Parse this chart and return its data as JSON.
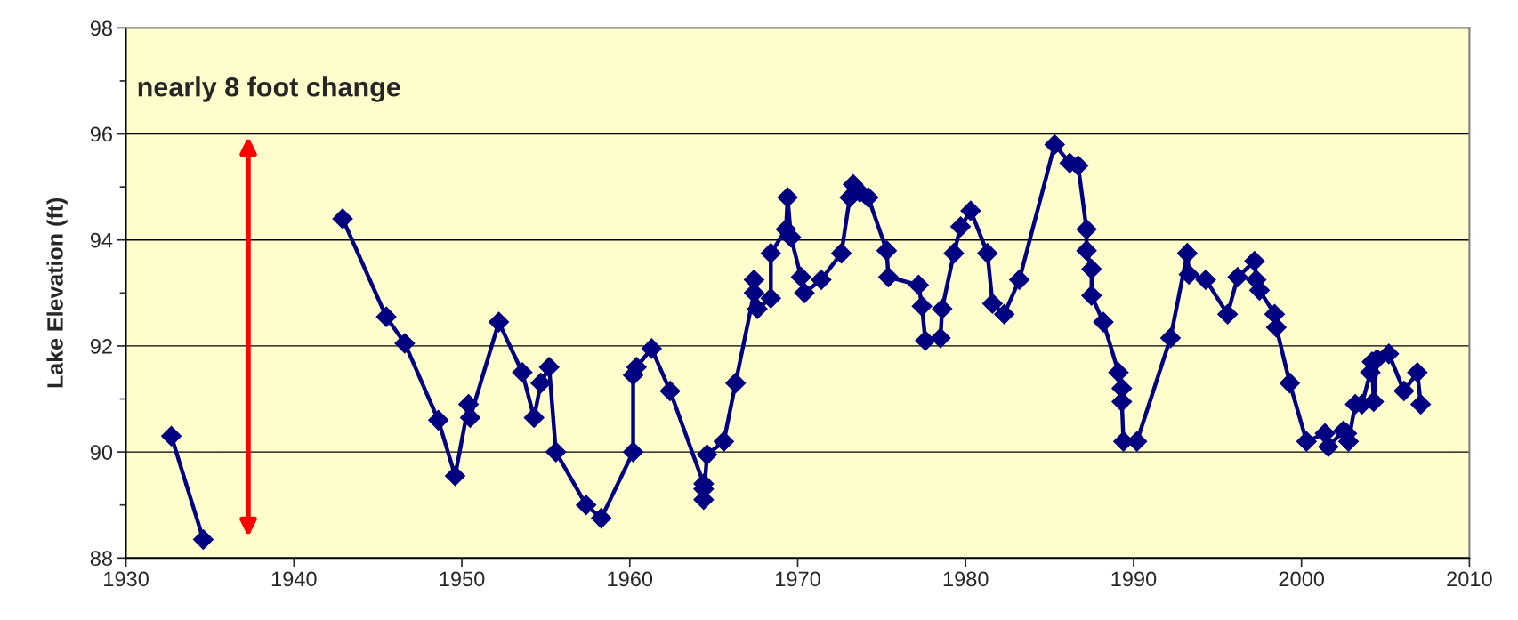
{
  "chart_data": {
    "type": "line",
    "ylabel": "Lake Elevation (ft)",
    "annotations": [
      "nearly 8 foot change"
    ],
    "x": [
      1932.7,
      1934.6,
      1938.0,
      1942.9,
      1945.5,
      1946.6,
      1948.6,
      1949.6,
      1950.4,
      1950.5,
      1952.2,
      1953.6,
      1954.3,
      1954.7,
      1955.2,
      1955.6,
      1957.4,
      1958.3,
      1960.2,
      1960.2,
      1960.4,
      1961.3,
      1962.4,
      1964.4,
      1964.4,
      1964.4,
      1964.6,
      1965.6,
      1966.3,
      1967.4,
      1967.4,
      1967.6,
      1968.4,
      1968.4,
      1969.3,
      1969.4,
      1969.6,
      1970.2,
      1970.4,
      1971.4,
      1972.6,
      1973.1,
      1973.3,
      1973.7,
      1974.2,
      1975.3,
      1975.4,
      1977.2,
      1977.4,
      1977.6,
      1978.5,
      1978.6,
      1979.3,
      1979.7,
      1980.3,
      1981.3,
      1981.6,
      1982.3,
      1983.2,
      1985.3,
      1986.2,
      1986.7,
      1987.2,
      1987.2,
      1987.5,
      1987.5,
      1988.2,
      1989.1,
      1989.3,
      1989.3,
      1989.4,
      1990.2,
      1992.2,
      1993.2,
      1993.3,
      1994.3,
      1995.6,
      1996.2,
      1997.2,
      1997.3,
      1997.5,
      1998.4,
      1998.5,
      1999.3,
      2000.3,
      2001.4,
      2001.6,
      2002.5,
      2002.7,
      2002.8,
      2003.2,
      2003.6,
      2004.1,
      2004.2,
      2004.3,
      2004.5,
      2005.2,
      2006.1,
      2006.9,
      2007.1
    ],
    "series": [
      {
        "color": "#000080",
        "values": [
          90.3,
          88.35,
          null,
          94.4,
          92.55,
          92.05,
          90.6,
          89.55,
          90.9,
          90.65,
          92.45,
          91.5,
          90.65,
          91.3,
          91.6,
          90.0,
          89.0,
          88.75,
          90.0,
          91.45,
          91.6,
          91.95,
          91.15,
          89.4,
          89.3,
          89.1,
          89.95,
          90.2,
          91.3,
          93.0,
          93.25,
          92.7,
          92.9,
          93.75,
          94.2,
          94.8,
          94.05,
          93.3,
          93.0,
          93.25,
          93.75,
          94.8,
          95.05,
          94.9,
          94.8,
          93.8,
          93.3,
          93.15,
          92.75,
          92.1,
          92.15,
          92.7,
          93.75,
          94.25,
          94.55,
          93.75,
          92.8,
          92.6,
          93.25,
          95.8,
          95.45,
          95.4,
          94.2,
          93.8,
          93.45,
          92.95,
          92.45,
          91.5,
          91.2,
          90.95,
          90.2,
          90.2,
          92.15,
          93.75,
          93.35,
          93.25,
          92.6,
          93.3,
          93.6,
          93.25,
          93.05,
          92.6,
          92.35,
          91.3,
          90.2,
          90.35,
          90.1,
          90.4,
          90.35,
          90.2,
          90.9,
          90.9,
          91.5,
          91.7,
          90.95,
          91.75,
          91.85,
          91.15,
          91.5,
          90.9
        ]
      }
    ],
    "xlim": [
      1930,
      2010
    ],
    "xticks": [
      1930,
      1940,
      1950,
      1960,
      1970,
      1980,
      1990,
      2000,
      2010
    ],
    "ylim": [
      88,
      98
    ],
    "yticks": [
      88,
      {
        "value": 89,
        "label": null
      },
      90,
      {
        "value": 91,
        "label": null
      },
      92,
      {
        "value": 93,
        "label": null
      },
      94,
      {
        "value": 95,
        "label": null
      },
      96,
      {
        "value": 97,
        "label": null
      },
      98
    ],
    "grid": "y",
    "marker": "diamond",
    "line_style": "solid"
  }
}
